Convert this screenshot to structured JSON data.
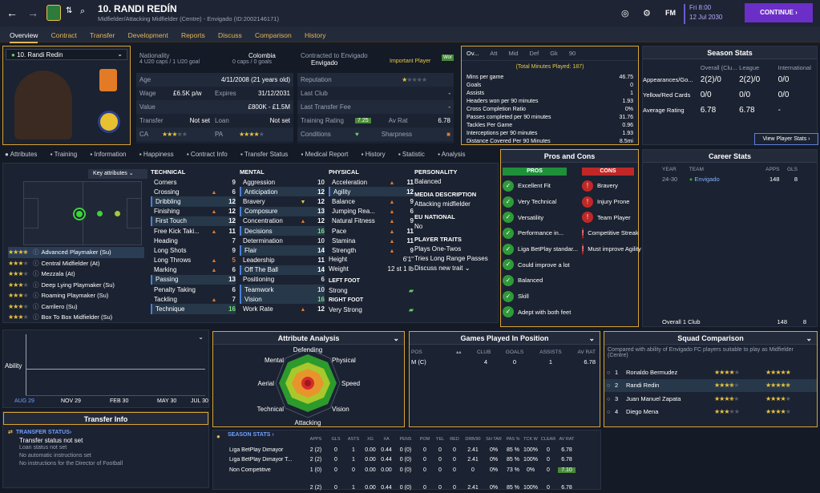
{
  "header": {
    "title": "10. RANDI REDÍN",
    "subtitle": "Midfielder/Attacking Midfielder (Centre) - Envigado (ID:2002146171)",
    "fm": "FM",
    "date_day": "Fri 8:00",
    "date": "12 Jul 2030",
    "continue": "CONTINUE"
  },
  "menu": [
    "Overview",
    "Contract",
    "Transfer",
    "Development",
    "Reports",
    "Discuss",
    "Comparison",
    "History"
  ],
  "player": {
    "selector": "10. Randi Redin",
    "nationality_label": "Nationality",
    "nationality": "Colombia",
    "caps1": "4 U20 caps / 1 U20 goal",
    "caps2": "0 caps / 0 goals",
    "contracted_label": "Contracted to Envigado",
    "club": "Envigado",
    "important": "Important Player",
    "wor": "Wor",
    "age_label": "Age",
    "age": "4/11/2008 (21 years old)",
    "wage_label": "Wage",
    "wage": "£6.5K p/w",
    "expires_label": "Expires",
    "expires": "31/12/2031",
    "value_label": "Value",
    "value": "£800K - £1.5M",
    "transfer_label": "Transfer",
    "transfer": "Not set",
    "loan_label": "Loan",
    "loan": "Not set",
    "ca_label": "CA",
    "pa_label": "PA",
    "rep_label": "Reputation",
    "lastclub_label": "Last Club",
    "lastclub": "-",
    "lastfee_label": "Last Transfer Fee",
    "lastfee": "-",
    "training_label": "Training Rating",
    "training": "7.25",
    "avrat_label": "Av Rat",
    "avrat": "6.78",
    "conditions_label": "Conditions",
    "sharpness_label": "Sharpness"
  },
  "stats_tabs": [
    "Ov...",
    "Att",
    "Mid",
    "Def",
    "Gk",
    "90"
  ],
  "stats": {
    "total": "(Total Minutes Played: 187)",
    "rows": [
      [
        "Mins per game",
        "46.75"
      ],
      [
        "Goals",
        "0"
      ],
      [
        "Assists",
        "1"
      ],
      [
        "Headers won per 90 minutes",
        "1.93"
      ],
      [
        "Cross Completion Ratio",
        "0%"
      ],
      [
        "Passes completed per 90 minutes",
        "31.76"
      ],
      [
        "Tackles Per Game",
        "0.96"
      ],
      [
        "Interceptions per 90 minutes",
        "1.93"
      ],
      [
        "Distance Covered Per 90 Minutes",
        "8.5mi"
      ]
    ]
  },
  "season": {
    "title": "Season Stats",
    "cols": [
      "Overall (Clu...",
      "League",
      "International"
    ],
    "rows": [
      [
        "Appearances/Go...",
        "2(2)/0",
        "2(2)/0",
        "0/0"
      ],
      [
        "Yellow/Red Cards",
        "0/0",
        "0/0",
        "0/0"
      ],
      [
        "Average Rating",
        "6.78",
        "6.78",
        "-"
      ]
    ],
    "button": "View Player Stats"
  },
  "subtabs": [
    "Attributes",
    "Training",
    "Information",
    "Happiness",
    "Contract Info",
    "Transfer Status",
    "Medical Report",
    "History",
    "Statistic",
    "Analysis"
  ],
  "keyattr": "Key attributes",
  "roles": [
    [
      "Advanced Playmaker (Su)",
      3.5
    ],
    [
      "Central Midfielder (At)",
      3
    ],
    [
      "Mezzala (At)",
      3
    ],
    [
      "Deep Lying Playmaker (Su)",
      3
    ],
    [
      "Roaming Playmaker (Su)",
      3
    ],
    [
      "Carrilero (Su)",
      3
    ],
    [
      "Box To Box Midfielder (Su)",
      3
    ]
  ],
  "technical": {
    "title": "TECHNICAL",
    "items": [
      [
        "Corners",
        "9",
        ""
      ],
      [
        "Crossing",
        "6",
        "up"
      ],
      [
        "Dribbling",
        "12",
        "",
        true
      ],
      [
        "Finishing",
        "12",
        "up"
      ],
      [
        "First Touch",
        "12",
        "",
        true
      ],
      [
        "Free Kick Taki...",
        "11",
        "up"
      ],
      [
        "Heading",
        "7",
        ""
      ],
      [
        "Long Shots",
        "9",
        ""
      ],
      [
        "Long Throws",
        "5",
        "up"
      ],
      [
        "Marking",
        "6",
        "up"
      ],
      [
        "Passing",
        "13",
        "",
        true
      ],
      [
        "Penalty Taking",
        "6",
        ""
      ],
      [
        "Tackling",
        "7",
        "up"
      ],
      [
        "Technique",
        "16",
        "",
        true
      ]
    ]
  },
  "mental": {
    "title": "MENTAL",
    "items": [
      [
        "Aggression",
        "10",
        ""
      ],
      [
        "Anticipation",
        "12",
        "",
        true
      ],
      [
        "Bravery",
        "12",
        "dn"
      ],
      [
        "Composure",
        "13",
        "",
        true
      ],
      [
        "Concentration",
        "12",
        "up"
      ],
      [
        "Decisions",
        "16",
        "",
        true
      ],
      [
        "Determination",
        "10",
        ""
      ],
      [
        "Flair",
        "14",
        "",
        true
      ],
      [
        "Leadership",
        "11",
        ""
      ],
      [
        "Off The Ball",
        "14",
        "",
        true
      ],
      [
        "Positioning",
        "6",
        ""
      ],
      [
        "Teamwork",
        "10",
        "",
        true
      ],
      [
        "Vision",
        "16",
        "",
        true
      ],
      [
        "Work Rate",
        "12",
        "up"
      ]
    ]
  },
  "physical": {
    "title": "PHYSICAL",
    "items": [
      [
        "Acceleration",
        "11",
        "up"
      ],
      [
        "Agility",
        "12",
        "",
        true
      ],
      [
        "Balance",
        "9",
        "up"
      ],
      [
        "Jumping Rea...",
        "6",
        "up"
      ],
      [
        "Natural Fitness",
        "9",
        "up"
      ],
      [
        "Pace",
        "11",
        "up"
      ],
      [
        "Stamina",
        "11",
        "up"
      ],
      [
        "Strength",
        "9",
        "up"
      ]
    ],
    "height_label": "Height",
    "height": "6'1\"",
    "weight_label": "Weight",
    "weight": "12 st 1 lb",
    "leftfoot_label": "LEFT FOOT",
    "leftfoot": "Strong",
    "rightfoot_label": "RIGHT FOOT",
    "rightfoot": "Very Strong"
  },
  "personality": {
    "title": "PERSONALITY",
    "value": "Balanced",
    "media_title": "MEDIA DESCRIPTION",
    "media": "Attacking midfielder",
    "eu_title": "EU NATIONAL",
    "eu": "No",
    "traits_title": "PLAYER TRAITS",
    "traits": [
      "Plays One-Twos",
      "Tries Long Range Passes"
    ],
    "discuss": "Discuss new trait"
  },
  "proscons": {
    "title": "Pros and Cons",
    "pros_label": "PROS",
    "cons_label": "CONS",
    "pros": [
      "Excellent Fit",
      "Very Technical",
      "Versatility",
      "Performance in...",
      "Liga BetPlay standar...",
      "Could improve a lot",
      "Balanced",
      "Skill",
      "Adept with both feet"
    ],
    "cons": [
      "Bravery",
      "Injury Prone",
      "Team Player",
      "Competitive Streak",
      "Must improve Agility"
    ]
  },
  "career": {
    "title": "Career Stats",
    "cols": [
      "YEAR",
      "TEAM",
      "APPS",
      "GLS"
    ],
    "row": [
      "24-30",
      "Envigado",
      "148",
      "8"
    ],
    "total": [
      "Overall 1 Club",
      "148",
      "8"
    ]
  },
  "ability": {
    "label": "Ability",
    "x": [
      "AUG 29",
      "NOV 29",
      "FEB 30",
      "MAY 30",
      "JUL 30"
    ]
  },
  "transfer_info": {
    "title": "Transfer Info",
    "status_title": "TRANSFER STATUS",
    "lines": [
      "Transfer status not set",
      "Loan status not set",
      "No automatic instructions set",
      "No instructions for the Director of Football"
    ]
  },
  "analysis": {
    "title": "Attribute Analysis",
    "labels": [
      "Defending",
      "Physical",
      "Speed",
      "Vision",
      "Attacking",
      "Technical",
      "Aerial",
      "Mental"
    ]
  },
  "games": {
    "title": "Games Played In Position",
    "cols": [
      "POS",
      "CLUB",
      "GOALS",
      "ASSISTS",
      "AV RAT"
    ],
    "row": [
      "M (C)",
      "4",
      "0",
      "1",
      "6.78"
    ]
  },
  "season_stats": {
    "title": "SEASON STATS",
    "cols": [
      "APPS",
      "GLS",
      "ASTS",
      "XG",
      "XA",
      "PENS",
      "POM",
      "YEL",
      "RED",
      "DRB/90",
      "SH TAR",
      "PAS %",
      "TCK W",
      "CLEAR",
      "AV RAT"
    ],
    "rows": [
      [
        "Liga BetPlay Dimayor",
        "2 (2)",
        "0",
        "1",
        "0.00",
        "0.44",
        "0 (0)",
        "0",
        "0",
        "0",
        "2.41",
        "0%",
        "85 %",
        "100%",
        "0",
        "6.78"
      ],
      [
        "Liga BetPlay Dimayor T...",
        "2 (2)",
        "0",
        "1",
        "0.00",
        "0.44",
        "0 (0)",
        "0",
        "0",
        "0",
        "2.41",
        "0%",
        "85 %",
        "100%",
        "0",
        "6.78"
      ],
      [
        "Non Competitive",
        "1 (0)",
        "0",
        "0",
        "0.00",
        "0.00",
        "0 (0)",
        "0",
        "0",
        "0",
        "0",
        "0%",
        "73 %",
        "0%",
        "0",
        "7.10"
      ],
      [
        "",
        "2 (2)",
        "0",
        "1",
        "0.00",
        "0.44",
        "0 (0)",
        "0",
        "0",
        "0",
        "2.41",
        "0%",
        "85 %",
        "100%",
        "0",
        "6.78"
      ]
    ]
  },
  "squad": {
    "title": "Squad Comparison",
    "desc": "Compared with ability of Envigado FC players suitable to play as Midfielder (Centre)",
    "rows": [
      [
        "1",
        "Ronaldo Bermudez",
        4,
        5
      ],
      [
        "2",
        "Randi Redin",
        3.5,
        4.5
      ],
      [
        "3",
        "Juan Manuel Zapata",
        3.5,
        4
      ],
      [
        "4",
        "Diego Mena",
        3,
        4
      ]
    ]
  }
}
